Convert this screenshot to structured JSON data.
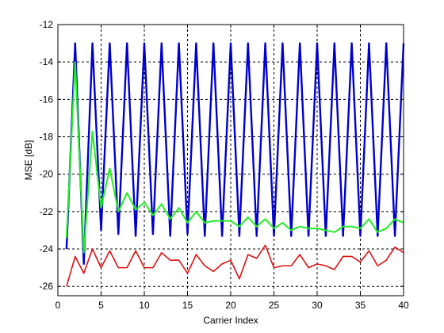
{
  "chart_data": {
    "type": "line",
    "title": "",
    "xlabel": "Carrier Index",
    "ylabel": "MSE [dB]",
    "xlim": [
      0,
      40
    ],
    "ylim": [
      -26.5,
      -12
    ],
    "xticks": [
      0,
      5,
      10,
      15,
      20,
      25,
      30,
      35,
      40
    ],
    "yticks": [
      -26,
      -24,
      -22,
      -20,
      -18,
      -16,
      -14,
      -12
    ],
    "grid": true,
    "legend": "none",
    "x": [
      1,
      2,
      3,
      4,
      5,
      6,
      7,
      8,
      9,
      10,
      11,
      12,
      13,
      14,
      15,
      16,
      17,
      18,
      19,
      20,
      21,
      22,
      23,
      24,
      25,
      26,
      27,
      28,
      29,
      30,
      31,
      32,
      33,
      34,
      35,
      36,
      37,
      38,
      39,
      40
    ],
    "series": [
      {
        "color": "#0000cc",
        "values": [
          -24.0,
          -13.0,
          -24.8,
          -13.0,
          -23.0,
          -13.0,
          -23.2,
          -13.0,
          -23.3,
          -13.0,
          -23.2,
          -13.0,
          -23.3,
          -13.0,
          -23.2,
          -13.0,
          -23.3,
          -13.0,
          -23.3,
          -13.0,
          -23.3,
          -13.0,
          -23.3,
          -13.0,
          -23.3,
          -13.0,
          -23.3,
          -13.0,
          -23.3,
          -13.0,
          -23.3,
          -13.0,
          -23.3,
          -13.0,
          -23.3,
          -13.0,
          -23.3,
          -13.0,
          -23.3,
          -13.0
        ]
      },
      {
        "color": "#22ee22",
        "values": [
          -23.4,
          -14.0,
          -24.2,
          -17.7,
          -21.8,
          -19.7,
          -22.0,
          -21.0,
          -21.9,
          -21.5,
          -22.2,
          -21.6,
          -22.4,
          -21.8,
          -22.6,
          -22.0,
          -22.6,
          -22.5,
          -22.5,
          -22.5,
          -22.8,
          -22.3,
          -22.8,
          -22.4,
          -22.9,
          -22.6,
          -23.0,
          -22.8,
          -22.9,
          -22.9,
          -23.0,
          -23.1,
          -22.8,
          -22.8,
          -22.9,
          -22.4,
          -23.1,
          -22.9,
          -22.4,
          -22.6
        ]
      },
      {
        "color": "#dd1111",
        "values": [
          -26.0,
          -24.4,
          -25.3,
          -24.0,
          -25.0,
          -24.1,
          -25.0,
          -25.0,
          -24.1,
          -25.0,
          -25.0,
          -24.2,
          -24.6,
          -24.6,
          -25.3,
          -24.3,
          -24.9,
          -25.2,
          -24.8,
          -24.6,
          -25.6,
          -24.3,
          -24.5,
          -23.8,
          -25.0,
          -24.9,
          -24.9,
          -24.3,
          -25.0,
          -24.8,
          -24.9,
          -25.1,
          -24.4,
          -24.4,
          -24.7,
          -24.1,
          -24.9,
          -24.6,
          -23.9,
          -24.2
        ]
      }
    ]
  }
}
